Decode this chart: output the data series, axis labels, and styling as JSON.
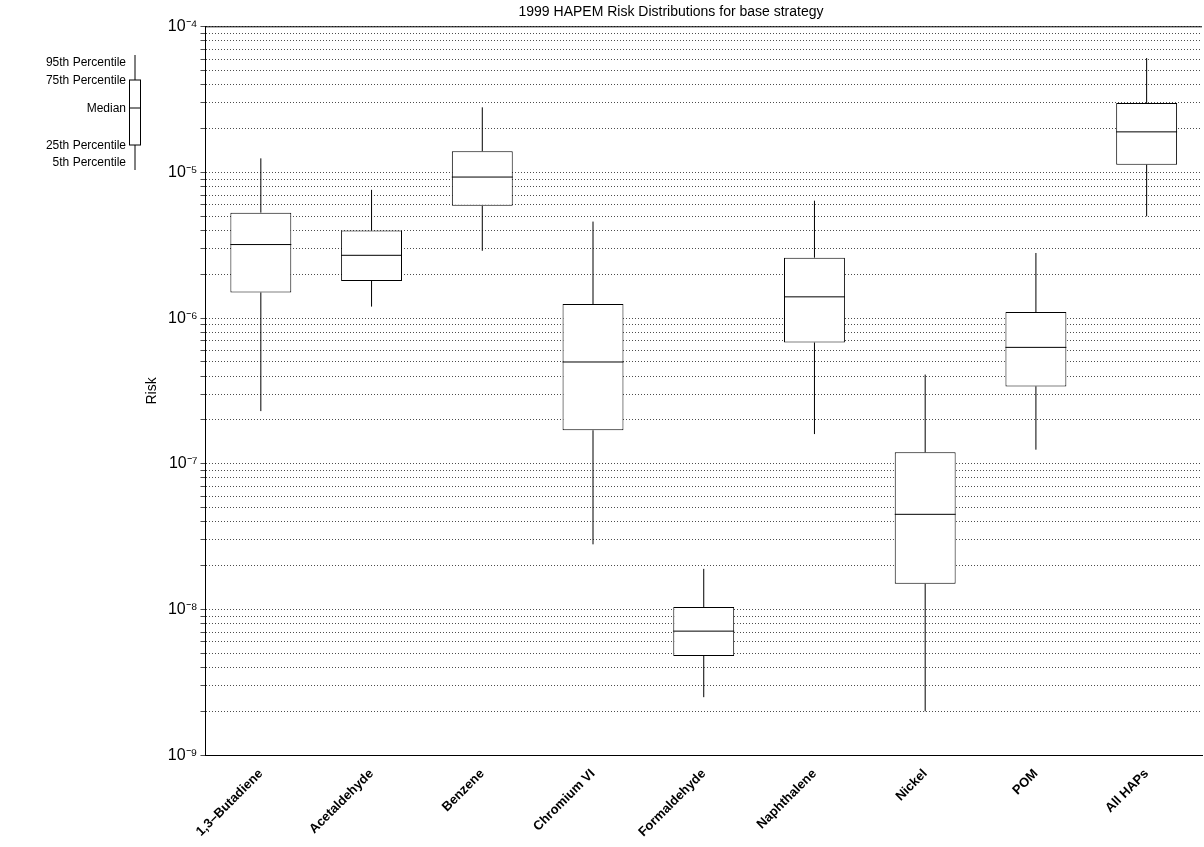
{
  "chart_data": {
    "type": "box",
    "title": "1999 HAPEM Risk Distributions for base strategy",
    "ylabel": "Risk",
    "categories": [
      "1,3–Butadiene",
      "Acetaldehyde",
      "Benzene",
      "Chromium VI",
      "Formaldehyde",
      "Naphthalene",
      "Nickel",
      "POM",
      "All HAPs"
    ],
    "color": "#000000",
    "log": true,
    "grid": "y",
    "legend": false,
    "ylim": [
      1e-09,
      0.0001
    ],
    "yticks": [
      {
        "value": 1e-09,
        "label": "10⁻⁹"
      },
      {
        "value": 2e-09,
        "label": null
      },
      {
        "value": 3e-09,
        "label": null
      },
      {
        "value": 4e-09,
        "label": null
      },
      {
        "value": 5e-09,
        "label": null
      },
      {
        "value": 6e-09,
        "label": null
      },
      {
        "value": 7e-09,
        "label": null
      },
      {
        "value": 8e-09,
        "label": null
      },
      {
        "value": 9e-09,
        "label": null
      },
      {
        "value": 1e-08,
        "label": "10⁻⁸"
      },
      {
        "value": 2e-08,
        "label": null
      },
      {
        "value": 3e-08,
        "label": null
      },
      {
        "value": 4e-08,
        "label": null
      },
      {
        "value": 5e-08,
        "label": null
      },
      {
        "value": 6e-08,
        "label": null
      },
      {
        "value": 7e-08,
        "label": null
      },
      {
        "value": 8e-08,
        "label": null
      },
      {
        "value": 9e-08,
        "label": null
      },
      {
        "value": 1e-07,
        "label": "10⁻⁷"
      },
      {
        "value": 2e-07,
        "label": null
      },
      {
        "value": 3e-07,
        "label": null
      },
      {
        "value": 4e-07,
        "label": null
      },
      {
        "value": 5e-07,
        "label": null
      },
      {
        "value": 6e-07,
        "label": null
      },
      {
        "value": 7e-07,
        "label": null
      },
      {
        "value": 8e-07,
        "label": null
      },
      {
        "value": 9e-07,
        "label": null
      },
      {
        "value": 1e-06,
        "label": "10⁻⁶"
      },
      {
        "value": 2e-06,
        "label": null
      },
      {
        "value": 3e-06,
        "label": null
      },
      {
        "value": 4e-06,
        "label": null
      },
      {
        "value": 5e-06,
        "label": null
      },
      {
        "value": 6e-06,
        "label": null
      },
      {
        "value": 7e-06,
        "label": null
      },
      {
        "value": 8e-06,
        "label": null
      },
      {
        "value": 9e-06,
        "label": null
      },
      {
        "value": 1e-05,
        "label": "10⁻⁵"
      },
      {
        "value": 2e-05,
        "label": null
      },
      {
        "value": 3e-05,
        "label": null
      },
      {
        "value": 4e-05,
        "label": null
      },
      {
        "value": 5e-05,
        "label": null
      },
      {
        "value": 6e-05,
        "label": null
      },
      {
        "value": 7e-05,
        "label": null
      },
      {
        "value": 8e-05,
        "label": null
      },
      {
        "value": 9e-05,
        "label": null
      },
      {
        "value": 0.0001,
        "label": "10⁻⁴"
      }
    ],
    "boxes": [
      {
        "low": 2.3e-07,
        "q1": 1.5e-06,
        "median": 3.2e-06,
        "q3": 5.3e-06,
        "high": 1.25e-05
      },
      {
        "low": 1.2e-06,
        "q1": 1.8e-06,
        "median": 2.7e-06,
        "q3": 4e-06,
        "high": 7.6e-06
      },
      {
        "low": 2.9e-06,
        "q1": 5.9e-06,
        "median": 9.3e-06,
        "q3": 1.4e-05,
        "high": 2.8e-05
      },
      {
        "low": 2.8e-08,
        "q1": 1.7e-07,
        "median": 5e-07,
        "q3": 1.25e-06,
        "high": 4.6e-06
      },
      {
        "low": 2.5e-09,
        "q1": 4.8e-09,
        "median": 7.1e-09,
        "q3": 1.04e-08,
        "high": 1.9e-08
      },
      {
        "low": 1.6e-07,
        "q1": 6.8e-07,
        "median": 1.4e-06,
        "q3": 2.6e-06,
        "high": 6.4e-06
      },
      {
        "low": 2e-09,
        "q1": 1.5e-08,
        "median": 4.5e-08,
        "q3": 1.2e-07,
        "high": 4.1e-07
      },
      {
        "low": 1.25e-07,
        "q1": 3.4e-07,
        "median": 6.3e-07,
        "q3": 1.1e-06,
        "high": 2.8e-06
      },
      {
        "low": 5e-06,
        "q1": 1.13e-05,
        "median": 1.9e-05,
        "q3": 3e-05,
        "high": 6.1e-05
      }
    ],
    "annotations": [
      "95th Percentile",
      "75th Percentile",
      "Median",
      "25th Percentile",
      "5th Percentile"
    ]
  }
}
